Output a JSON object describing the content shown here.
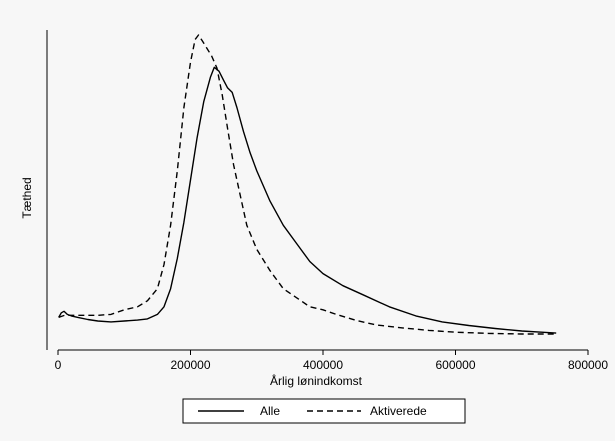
{
  "chart_data": {
    "type": "line",
    "title": "",
    "xlabel": "Årlig lønindkomst",
    "ylabel": "Tæthed",
    "xlim": [
      0,
      800000
    ],
    "ylim": [
      0,
      1
    ],
    "x_ticks": [
      0,
      200000,
      400000,
      600000,
      800000
    ],
    "x_tick_labels": [
      "0",
      "200000",
      "400000",
      "600000",
      "800000"
    ],
    "grid": false,
    "legend": {
      "placement": "bottom",
      "frame": true
    },
    "series": [
      {
        "name": "Alle",
        "style": "solid",
        "color": "#000000",
        "points": [
          [
            1000,
            0.065
          ],
          [
            5000,
            0.08
          ],
          [
            9000,
            0.085
          ],
          [
            14000,
            0.075
          ],
          [
            20000,
            0.07
          ],
          [
            30000,
            0.065
          ],
          [
            45000,
            0.058
          ],
          [
            60000,
            0.053
          ],
          [
            80000,
            0.05
          ],
          [
            100000,
            0.053
          ],
          [
            120000,
            0.056
          ],
          [
            135000,
            0.06
          ],
          [
            150000,
            0.075
          ],
          [
            160000,
            0.1
          ],
          [
            170000,
            0.16
          ],
          [
            180000,
            0.26
          ],
          [
            190000,
            0.38
          ],
          [
            200000,
            0.52
          ],
          [
            210000,
            0.66
          ],
          [
            220000,
            0.78
          ],
          [
            230000,
            0.86
          ],
          [
            236000,
            0.893
          ],
          [
            243000,
            0.88
          ],
          [
            250000,
            0.85
          ],
          [
            256000,
            0.825
          ],
          [
            263000,
            0.81
          ],
          [
            270000,
            0.76
          ],
          [
            280000,
            0.68
          ],
          [
            290000,
            0.61
          ],
          [
            300000,
            0.55
          ],
          [
            320000,
            0.45
          ],
          [
            340000,
            0.37
          ],
          [
            360000,
            0.31
          ],
          [
            380000,
            0.25
          ],
          [
            400000,
            0.21
          ],
          [
            430000,
            0.17
          ],
          [
            460000,
            0.14
          ],
          [
            500000,
            0.1
          ],
          [
            540000,
            0.07
          ],
          [
            580000,
            0.05
          ],
          [
            620000,
            0.038
          ],
          [
            660000,
            0.028
          ],
          [
            700000,
            0.02
          ],
          [
            730000,
            0.016
          ],
          [
            752000,
            0.013
          ]
        ]
      },
      {
        "name": "Aktiverede",
        "style": "dashed",
        "color": "#000000",
        "points": [
          [
            1000,
            0.065
          ],
          [
            10000,
            0.072
          ],
          [
            20000,
            0.072
          ],
          [
            40000,
            0.072
          ],
          [
            60000,
            0.072
          ],
          [
            80000,
            0.075
          ],
          [
            100000,
            0.09
          ],
          [
            120000,
            0.1
          ],
          [
            135000,
            0.12
          ],
          [
            150000,
            0.16
          ],
          [
            160000,
            0.24
          ],
          [
            170000,
            0.37
          ],
          [
            180000,
            0.55
          ],
          [
            190000,
            0.76
          ],
          [
            200000,
            0.91
          ],
          [
            207000,
            0.985
          ],
          [
            212000,
            1.0
          ],
          [
            218000,
            0.98
          ],
          [
            225000,
            0.955
          ],
          [
            232000,
            0.93
          ],
          [
            240000,
            0.89
          ],
          [
            248000,
            0.8
          ],
          [
            256000,
            0.69
          ],
          [
            265000,
            0.57
          ],
          [
            275000,
            0.47
          ],
          [
            285000,
            0.37
          ],
          [
            300000,
            0.29
          ],
          [
            320000,
            0.22
          ],
          [
            340000,
            0.16
          ],
          [
            360000,
            0.13
          ],
          [
            380000,
            0.1
          ],
          [
            400000,
            0.09
          ],
          [
            420000,
            0.075
          ],
          [
            450000,
            0.055
          ],
          [
            480000,
            0.04
          ],
          [
            520000,
            0.03
          ],
          [
            560000,
            0.022
          ],
          [
            600000,
            0.016
          ],
          [
            650000,
            0.012
          ],
          [
            700000,
            0.01
          ],
          [
            750000,
            0.01
          ]
        ]
      }
    ]
  }
}
